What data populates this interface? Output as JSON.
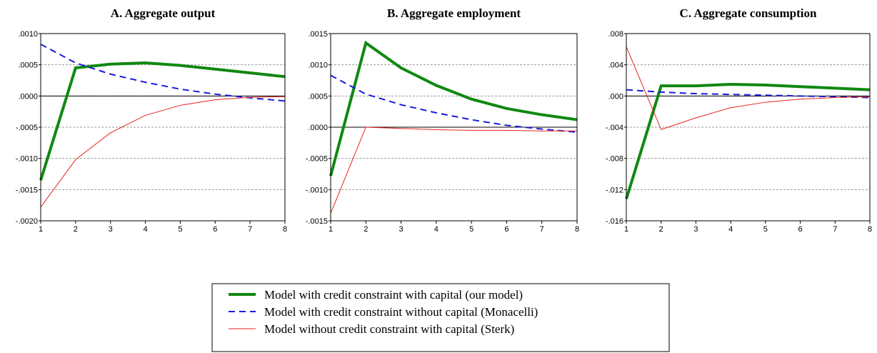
{
  "chart_data": [
    {
      "type": "line",
      "title": "A. Aggregate output",
      "x": [
        1,
        2,
        3,
        4,
        5,
        6,
        7,
        8
      ],
      "xlim": [
        1,
        8
      ],
      "xticks": [
        1,
        2,
        3,
        4,
        5,
        6,
        7,
        8
      ],
      "ylim": [
        -0.002,
        0.001
      ],
      "yticks": [
        {
          "value": -0.002,
          "label": "-.0020"
        },
        {
          "value": -0.0015,
          "label": "-.0015"
        },
        {
          "value": -0.001,
          "label": "-.0010"
        },
        {
          "value": -0.0005,
          "label": "-.0005"
        },
        {
          "value": 0,
          "label": ".0000"
        },
        {
          "value": 0.0005,
          "label": ".0005"
        },
        {
          "value": 0.001,
          "label": ".0010"
        }
      ],
      "grid": true,
      "series": [
        {
          "name": "Model with credit constraint with capital (our model)",
          "color": "#118811",
          "values": [
            -0.00135,
            0.00045,
            0.00051,
            0.00053,
            0.00049,
            0.00043,
            0.00037,
            0.00031
          ]
        },
        {
          "name": "Model with credit constraint without capital (Monacelli)",
          "color": "#1a1adf",
          "values": [
            0.00083,
            0.00053,
            0.00035,
            0.00022,
            0.00011,
            3e-05,
            -3e-05,
            -8e-05
          ]
        },
        {
          "name": "Model without credit constraint with capital (Sterk)",
          "color": "#e8231e",
          "values": [
            -0.00178,
            -0.00102,
            -0.00059,
            -0.00031,
            -0.00015,
            -6e-05,
            -2e-05,
            -1e-05
          ]
        }
      ]
    },
    {
      "type": "line",
      "title": "B. Aggregate employment",
      "x": [
        1,
        2,
        3,
        4,
        5,
        6,
        7,
        8
      ],
      "xlim": [
        1,
        8
      ],
      "xticks": [
        1,
        2,
        3,
        4,
        5,
        6,
        7,
        8
      ],
      "ylim": [
        -0.0015,
        0.0015
      ],
      "yticks": [
        {
          "value": -0.0015,
          "label": "-.0015"
        },
        {
          "value": -0.001,
          "label": "-.0010"
        },
        {
          "value": -0.0005,
          "label": "-.0005"
        },
        {
          "value": 0,
          "label": ".0000"
        },
        {
          "value": 0.0005,
          "label": ".0005"
        },
        {
          "value": 0.001,
          "label": ".0010"
        },
        {
          "value": 0.0015,
          "label": ".0015"
        }
      ],
      "grid": true,
      "series": [
        {
          "color": "#118811",
          "values": [
            -0.00078,
            0.00135,
            0.00095,
            0.00067,
            0.00045,
            0.0003,
            0.0002,
            0.00012
          ]
        },
        {
          "color": "#1a1adf",
          "values": [
            0.00083,
            0.00053,
            0.00036,
            0.00023,
            0.00012,
            3e-05,
            -3e-05,
            -8e-05
          ]
        },
        {
          "color": "#e8231e",
          "values": [
            -0.00138,
            0,
            -2e-05,
            -4e-05,
            -5e-05,
            -5e-05,
            -6e-05,
            -6e-05
          ]
        }
      ]
    },
    {
      "type": "line",
      "title": "C. Aggregate consumption",
      "x": [
        1,
        2,
        3,
        4,
        5,
        6,
        7,
        8
      ],
      "xlim": [
        1,
        8
      ],
      "xticks": [
        1,
        2,
        3,
        4,
        5,
        6,
        7,
        8
      ],
      "ylim": [
        -0.016,
        0.008
      ],
      "yticks": [
        {
          "value": -0.016,
          "label": "-.016"
        },
        {
          "value": -0.012,
          "label": "-.012"
        },
        {
          "value": -0.008,
          "label": "-.008"
        },
        {
          "value": -0.004,
          "label": "-.004"
        },
        {
          "value": 0,
          "label": ".000"
        },
        {
          "value": 0.004,
          "label": ".004"
        },
        {
          "value": 0.008,
          "label": ".008"
        }
      ],
      "grid": true,
      "series": [
        {
          "color": "#118811",
          "values": [
            -0.0132,
            0.0013,
            0.0013,
            0.0015,
            0.0014,
            0.0012,
            0.001,
            0.0008
          ]
        },
        {
          "color": "#1a1adf",
          "values": [
            0.0008,
            0.0005,
            0.0003,
            0.0002,
            0.0001,
            0,
            -0.0001,
            -0.0002
          ]
        },
        {
          "color": "#e8231e",
          "values": [
            0.0063,
            -0.0043,
            -0.0028,
            -0.0015,
            -0.0008,
            -0.0004,
            -0.0002,
            -0.0001
          ]
        }
      ]
    }
  ]
}
